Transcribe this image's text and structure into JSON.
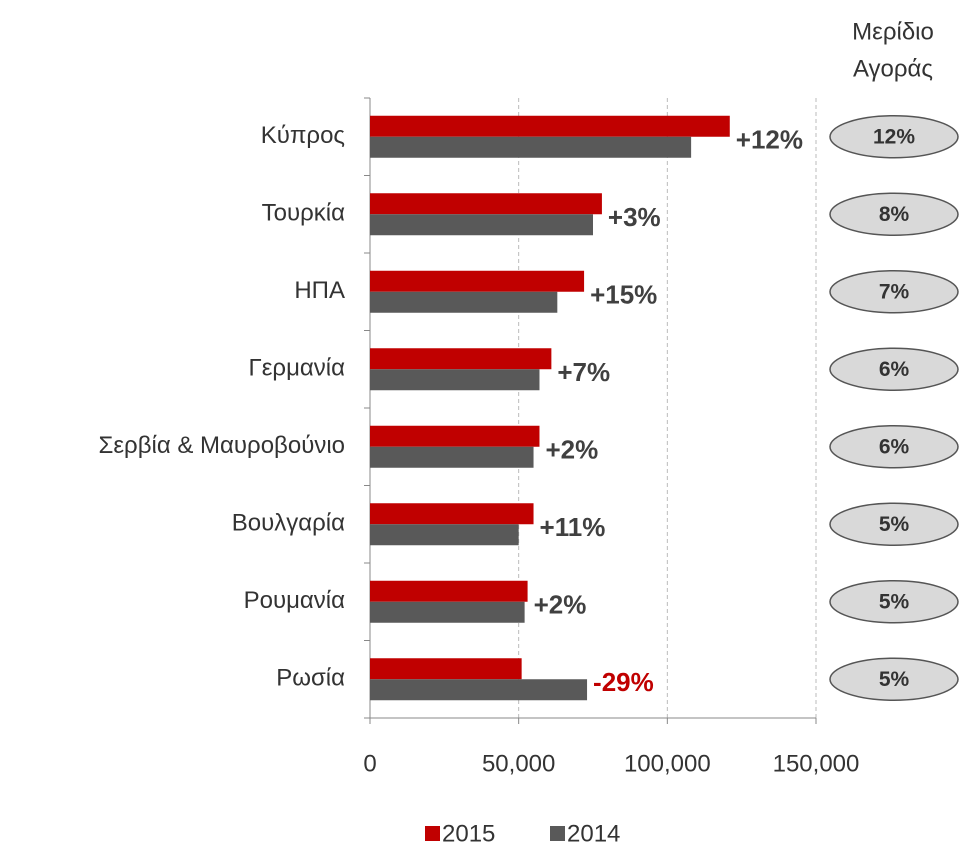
{
  "chart_data": {
    "type": "bar",
    "orientation": "horizontal",
    "categories": [
      "Κύπρος",
      "Τουρκία",
      "ΗΠΑ",
      "Γερμανία",
      "Σερβία & Μαυροβούνιο",
      "Βουλγαρία",
      "Ρουμανία",
      "Ρωσία"
    ],
    "series": [
      {
        "name": "2015",
        "color": "#c00000",
        "values": [
          121000,
          78000,
          72000,
          61000,
          57000,
          55000,
          53000,
          51000
        ]
      },
      {
        "name": "2014",
        "color": "#595959",
        "values": [
          108000,
          75000,
          63000,
          57000,
          55000,
          50000,
          52000,
          73000
        ]
      }
    ],
    "growth_labels": [
      "+12%",
      "+3%",
      "+15%",
      "+7%",
      "+2%",
      "+11%",
      "+2%",
      "-29%"
    ],
    "share_title": [
      "Μερίδιο",
      "Αγοράς"
    ],
    "share_labels": [
      "12%",
      "8%",
      "7%",
      "6%",
      "6%",
      "5%",
      "5%",
      "5%"
    ],
    "xlim": [
      0,
      150000
    ],
    "xticks": [
      0,
      {
        "value": 50000,
        "label": "50,000"
      },
      {
        "value": 100000,
        "label": "100,000"
      },
      {
        "value": 150000,
        "label": "150,000"
      }
    ],
    "grid": true,
    "legend": "bottom"
  }
}
